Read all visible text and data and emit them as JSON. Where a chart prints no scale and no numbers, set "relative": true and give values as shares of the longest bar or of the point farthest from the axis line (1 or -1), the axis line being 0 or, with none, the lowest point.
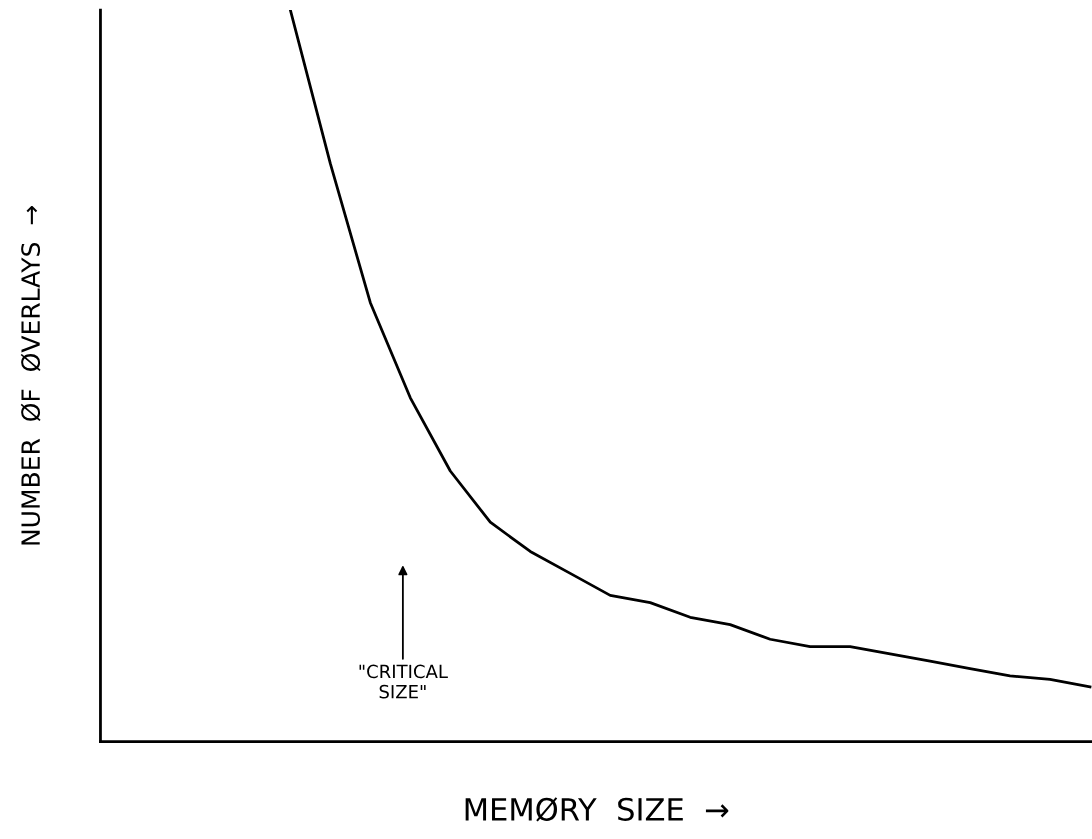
{
  "chart_data": {
    "type": "line",
    "relative": true,
    "xlabel": "MEMØRY  SIZE  →",
    "ylabel": "NUMBER  ØF  ØVERLAYS  →",
    "categories": [
      null,
      null,
      null,
      null,
      null,
      null,
      null,
      null,
      null,
      null,
      null,
      null,
      null,
      null,
      null,
      null,
      null,
      null,
      null,
      null,
      null,
      null,
      null,
      null,
      null
    ],
    "series": [
      {
        "color": "#000000",
        "values": [
          null,
          null,
          null,
          null,
          1.0,
          0.79,
          0.6,
          0.47,
          0.37,
          0.3,
          0.26,
          0.23,
          0.2,
          0.19,
          0.17,
          0.16,
          0.14,
          0.13,
          0.13,
          0.12,
          0.11,
          0.1,
          0.09,
          0.085,
          0.075
        ]
      }
    ],
    "annotations": [
      "\"CRITICAL\nSIZE\""
    ],
    "grid": false,
    "legend": false,
    "marker": "none",
    "line_style": "solid",
    "tick_labels": false
  }
}
